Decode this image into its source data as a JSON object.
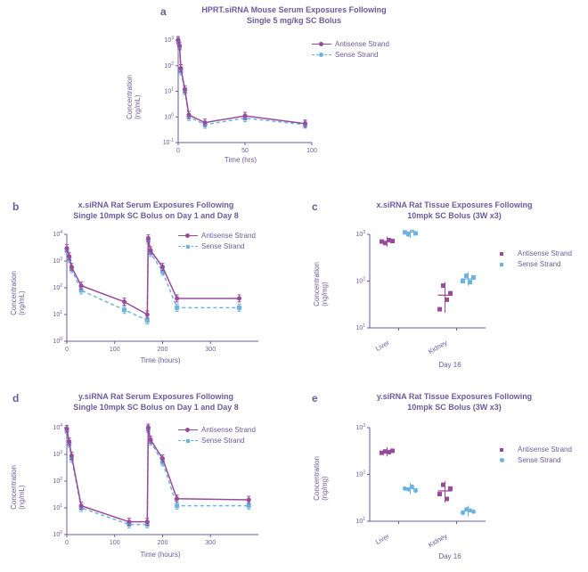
{
  "colors": {
    "purple": "#994b9a",
    "blue": "#6db3e0",
    "axis": "#6b5b9a",
    "bg": "#ffffff"
  },
  "panels": {
    "a": {
      "label": "a",
      "title_l1": "HPRT.siRNA Mouse Serum Exposures Following",
      "title_l2": "Single 5 mg/kg SC Bolus",
      "ylabel": "Concentration\n(ng/mL)",
      "xlabel": "Time (hrs)",
      "legend": [
        "Antisense Strand",
        "Sense Strand"
      ],
      "xlim": [
        0,
        100
      ],
      "xticks": [
        0,
        50,
        100
      ],
      "yticks_exp": [
        -1,
        0,
        1,
        2,
        3
      ],
      "series_antisense": [
        [
          0,
          1000
        ],
        [
          1,
          600
        ],
        [
          2,
          80
        ],
        [
          5,
          12
        ],
        [
          8,
          1.2
        ],
        [
          20,
          0.6
        ],
        [
          50,
          1.1
        ],
        [
          95,
          0.55
        ]
      ],
      "series_sense": [
        [
          0,
          900
        ],
        [
          1,
          550
        ],
        [
          2,
          60
        ],
        [
          5,
          10
        ],
        [
          8,
          1.0
        ],
        [
          20,
          0.5
        ],
        [
          50,
          0.9
        ],
        [
          95,
          0.5
        ]
      ]
    },
    "b": {
      "label": "b",
      "title_l1": "x.siRNA Rat Serum Exposures Following",
      "title_l2": "Single 10mpk SC Bolus on Day 1 and Day 8",
      "ylabel": "Concentration\n(ng/mL)",
      "xlabel": "Time (hours)",
      "legend": [
        "Antisense Strand",
        "Sense Strand"
      ],
      "xlim": [
        0,
        400
      ],
      "xticks": [
        0,
        100,
        200,
        300
      ],
      "yticks_exp": [
        0,
        1,
        2,
        3,
        4
      ],
      "series_antisense": [
        [
          0,
          3000
        ],
        [
          5,
          1500
        ],
        [
          10,
          600
        ],
        [
          30,
          120
        ],
        [
          120,
          30
        ],
        [
          168,
          10
        ],
        [
          170,
          7000
        ],
        [
          175,
          2500
        ],
        [
          200,
          600
        ],
        [
          230,
          40
        ],
        [
          360,
          40
        ]
      ],
      "series_sense": [
        [
          0,
          2500
        ],
        [
          5,
          1200
        ],
        [
          10,
          500
        ],
        [
          30,
          80
        ],
        [
          120,
          15
        ],
        [
          168,
          6
        ],
        [
          170,
          6000
        ],
        [
          175,
          2000
        ],
        [
          200,
          400
        ],
        [
          230,
          18
        ],
        [
          360,
          18
        ]
      ]
    },
    "c": {
      "label": "c",
      "title_l1": "x.siRNA Rat Tissue Exposures Following",
      "title_l2": "10mpk SC Bolus (3W x3)",
      "ylabel": "Concentration\n(ng/mg)",
      "xlabel": "Day 16",
      "legend": [
        "Antisense Strand",
        "Sense Strand"
      ],
      "yticks_exp": [
        1,
        2,
        3
      ],
      "categories": [
        "Liver",
        "Kidney"
      ],
      "points": {
        "liver_antisense": [
          700,
          650,
          750,
          720
        ],
        "liver_sense": [
          1100,
          1000,
          1300,
          1050
        ],
        "kidney_antisense": [
          25,
          80,
          40,
          55
        ],
        "kidney_sense": [
          100,
          130,
          95,
          120
        ]
      }
    },
    "d": {
      "label": "d",
      "title_l1": "y.siRNA Rat Serum Exposures Following",
      "title_l2": "Single 10mpk SC Bolus on Day 1 and Day 8",
      "ylabel": "Concentration\n(ng/mL)",
      "xlabel": "Time (hours)",
      "legend": [
        "Antisense Strand",
        "Sense Strand"
      ],
      "xlim": [
        0,
        400
      ],
      "xticks": [
        0,
        100,
        200,
        300
      ],
      "yticks_exp": [
        0,
        1,
        2,
        3,
        4
      ],
      "series_antisense": [
        [
          0,
          9000
        ],
        [
          5,
          3000
        ],
        [
          10,
          900
        ],
        [
          30,
          12
        ],
        [
          130,
          3
        ],
        [
          168,
          3
        ],
        [
          170,
          10000
        ],
        [
          175,
          3500
        ],
        [
          200,
          700
        ],
        [
          230,
          22
        ],
        [
          380,
          20
        ]
      ],
      "series_sense": [
        [
          0,
          8000
        ],
        [
          5,
          2500
        ],
        [
          10,
          700
        ],
        [
          30,
          10
        ],
        [
          130,
          2.4
        ],
        [
          168,
          2.4
        ],
        [
          170,
          9000
        ],
        [
          175,
          3000
        ],
        [
          200,
          500
        ],
        [
          230,
          12
        ],
        [
          380,
          12
        ]
      ]
    },
    "e": {
      "label": "e",
      "title_l1": "y.siRNA Rat Tissue Exposures Following",
      "title_l2": "10mpk SC Bolus (3W x3)",
      "ylabel": "Concentration\n(ng/mg)",
      "xlabel": "Day 16",
      "legend": [
        "Antisense Strand",
        "Sense Strand"
      ],
      "yticks_exp": [
        1,
        2,
        3
      ],
      "categories": [
        "Liver",
        "Kidney"
      ],
      "points": {
        "liver_antisense": [
          290,
          310,
          300,
          320
        ],
        "liver_sense": [
          50,
          48,
          55,
          45
        ],
        "kidney_antisense": [
          38,
          60,
          30,
          50
        ],
        "kidney_sense": [
          15,
          18,
          17,
          16
        ]
      }
    }
  }
}
